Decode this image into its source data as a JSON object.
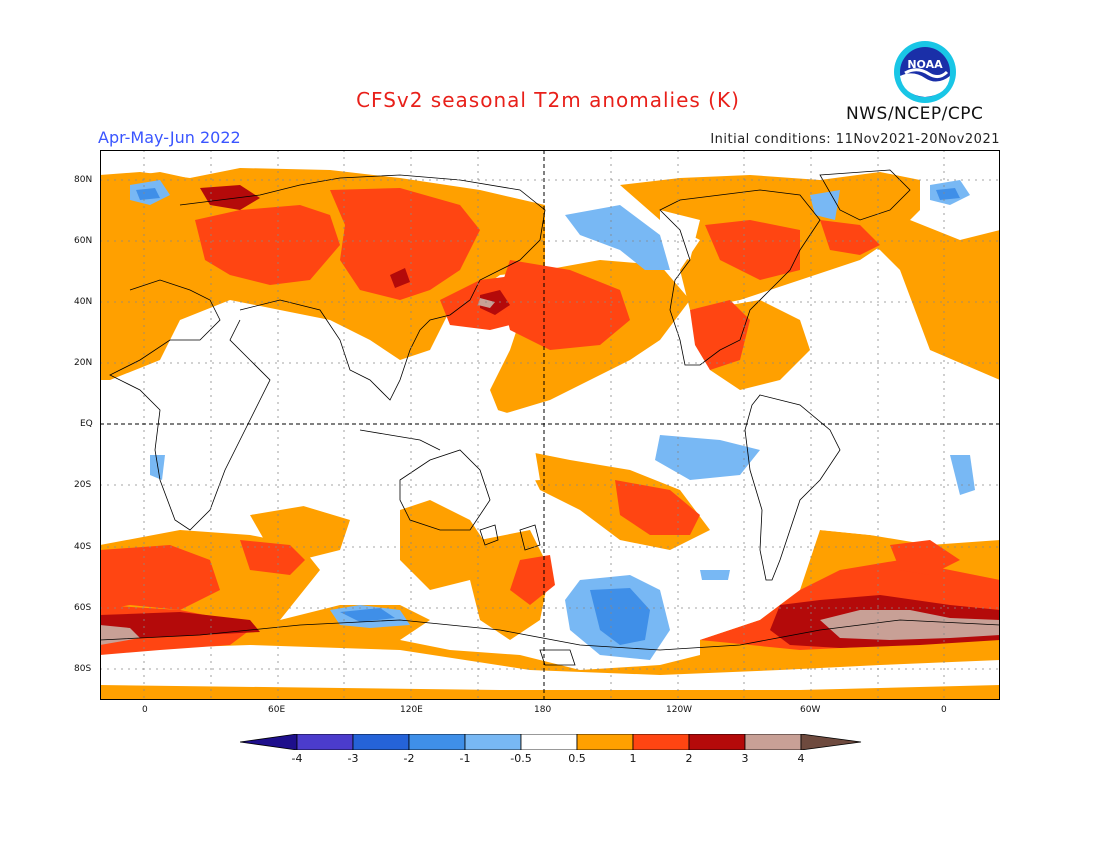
{
  "header": {
    "title": "CFSv2 seasonal T2m anomalies (K)",
    "season": "Apr-May-Jun 2022",
    "initial_conditions": "Initial conditions: 11Nov2021-20Nov2021",
    "agency": "NWS/NCEP/CPC",
    "logo_text": "NOAA"
  },
  "axes": {
    "lat_labels": [
      "80N",
      "60N",
      "40N",
      "20N",
      "EQ",
      "20S",
      "40S",
      "60S",
      "80S"
    ],
    "lon_labels": [
      "0",
      "60E",
      "120E",
      "180",
      "120W",
      "60W",
      "0"
    ]
  },
  "colorbar": {
    "labels": [
      "-4",
      "-3",
      "-2",
      "-1",
      "-0.5",
      "0.5",
      "1",
      "2",
      "3",
      "4"
    ],
    "colors": [
      "#1e0f8c",
      "#4b3ccc",
      "#2563d8",
      "#3f8fe8",
      "#78b8f4",
      "#ffffff",
      "#ffa000",
      "#ff4512",
      "#b40a0a",
      "#c8a096",
      "#6e4a3e"
    ]
  },
  "colors": {
    "orange": "#ffa000",
    "red": "#ff4512",
    "darkred": "#b40a0a",
    "pink": "#c8a096",
    "lightblue": "#78b8f4",
    "blue": "#3f8fe8",
    "midblue": "#2563d8"
  }
}
